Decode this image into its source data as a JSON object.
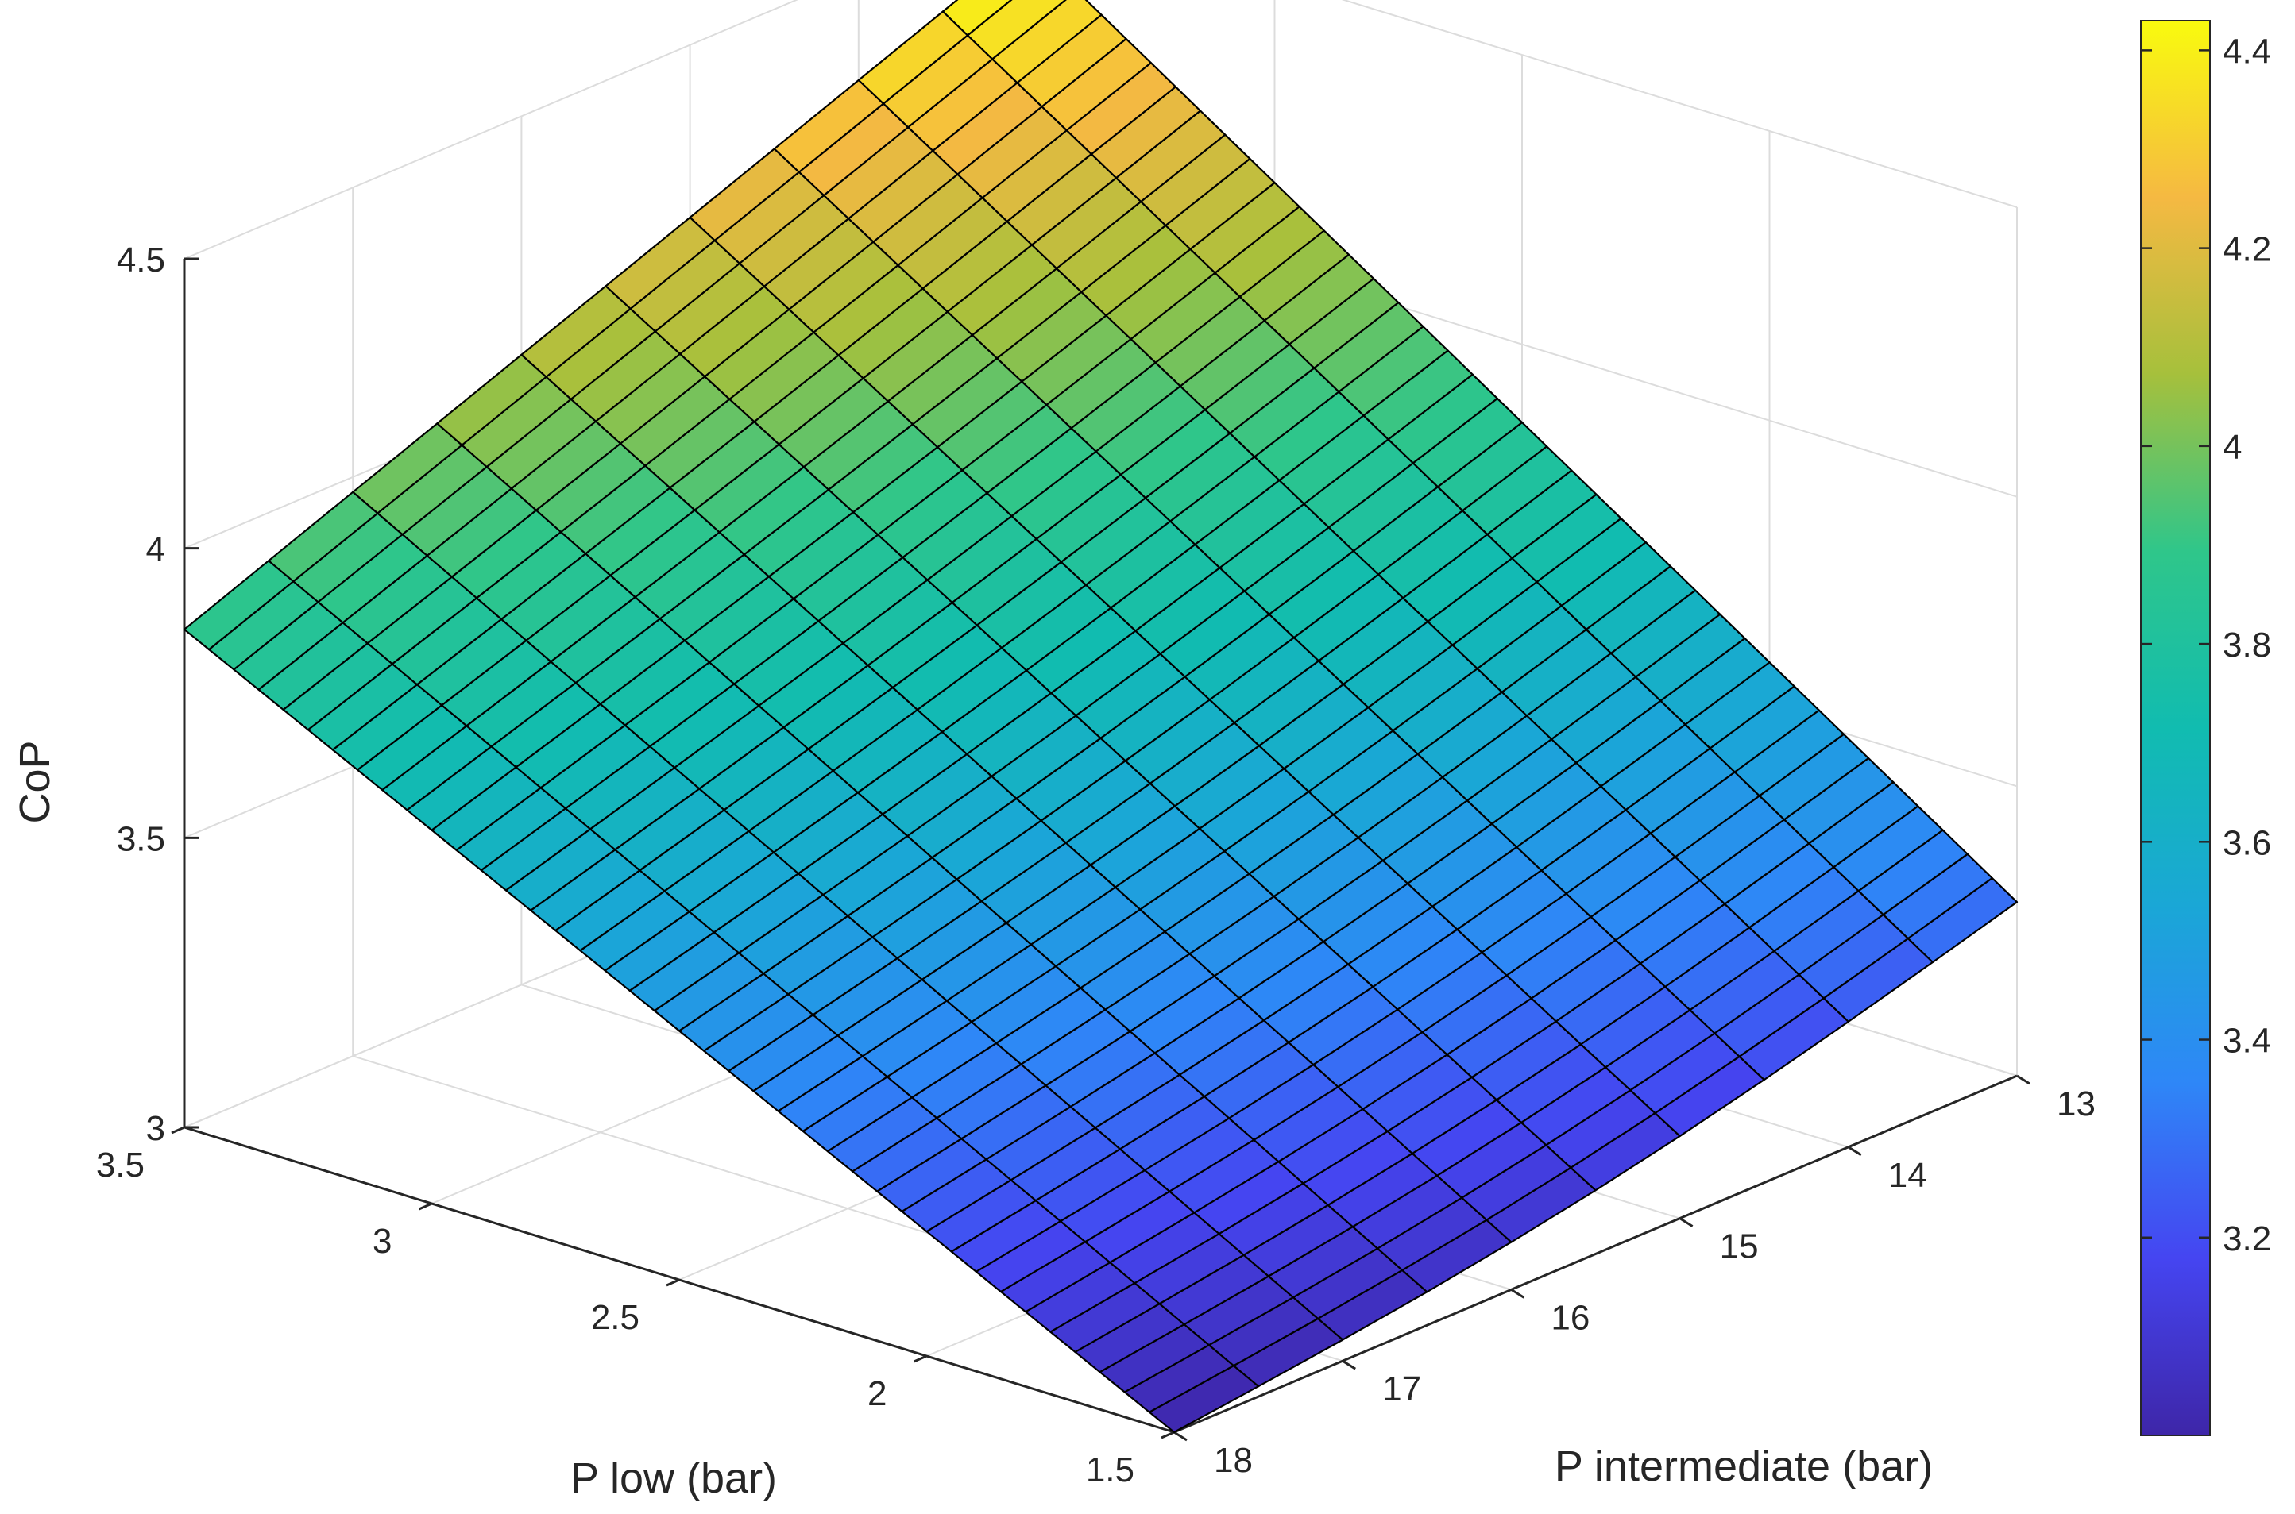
{
  "chart_data": {
    "type": "surface",
    "title": "",
    "xlabel": "P intermediate (bar)",
    "ylabel": "P low (bar)",
    "zlabel": "CoP",
    "x_range": [
      13,
      18
    ],
    "y_range": [
      1.5,
      3.5
    ],
    "z_range": [
      3,
      4.5
    ],
    "x_ticks": [
      "13",
      "14",
      "15",
      "16",
      "17",
      "18"
    ],
    "y_ticks": [
      "1.5",
      "2",
      "2.5",
      "3",
      "3.5"
    ],
    "z_ticks": [
      "3",
      "3.5",
      "4",
      "4.5"
    ],
    "colorbar": {
      "range": [
        3.0,
        4.43
      ],
      "ticks": [
        "3.2",
        "3.4",
        "3.6",
        "3.8",
        "4",
        "4.2",
        "4.4"
      ],
      "colormap": "parula"
    },
    "grid": true,
    "mesh": {
      "x_count": 11,
      "y_count": 41,
      "edge_color": "#000000"
    },
    "corner_values": [
      {
        "p_intermediate": 13,
        "p_low": 3.5,
        "cop": 4.43
      },
      {
        "p_intermediate": 18,
        "p_low": 3.5,
        "cop": 3.86
      },
      {
        "p_intermediate": 13,
        "p_low": 1.5,
        "cop": 3.3
      },
      {
        "p_intermediate": 18,
        "p_low": 1.5,
        "cop": 3.0
      }
    ]
  }
}
